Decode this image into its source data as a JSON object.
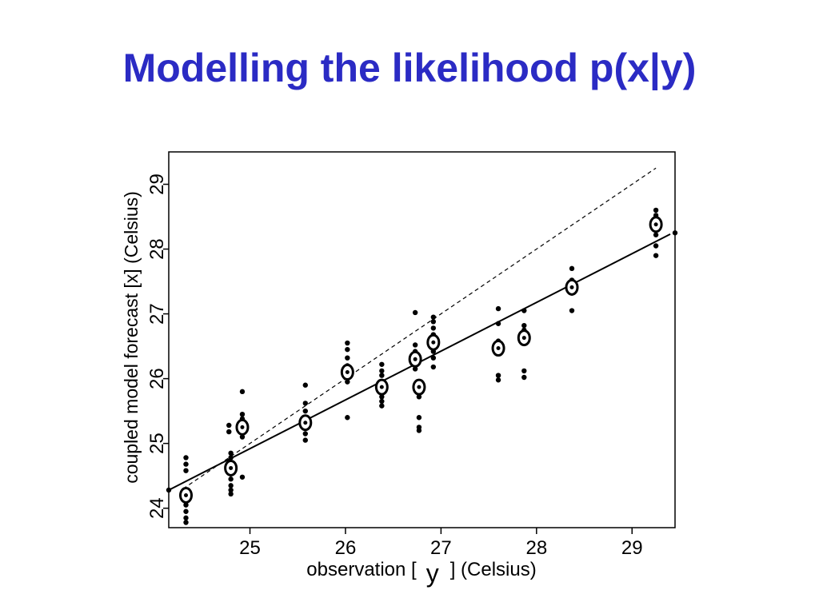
{
  "slide": {
    "title": "Modelling the likelihood p(x|y)",
    "title_color": "#2b2bc4"
  },
  "chart_data": {
    "type": "scatter",
    "xlabel_prefix": "observation [",
    "xlabel_variable": "y",
    "xlabel_suffix": "] (Celsius)",
    "ylabel": "coupled model forecast [x] (Celsius)",
    "xlim": [
      24.15,
      29.45
    ],
    "ylim": [
      23.7,
      29.5
    ],
    "xticks": [
      "25",
      "26",
      "27",
      "28",
      "29"
    ],
    "yticks": [
      "24",
      "25",
      "26",
      "27",
      "28",
      "29"
    ],
    "grid": false,
    "point_color": "#000000",
    "ensemble_points": [
      {
        "x": 24.33,
        "y": [
          24.78,
          24.68,
          24.58,
          24.28,
          24.22,
          24.1,
          24.05,
          23.95,
          23.85,
          23.78
        ]
      },
      {
        "x": 24.8,
        "y": [
          24.85,
          24.78,
          24.7,
          24.55,
          24.45,
          24.35,
          24.28,
          24.22
        ]
      },
      {
        "x": 24.92,
        "y": [
          25.8,
          25.45,
          25.38,
          25.32,
          25.2,
          25.1,
          24.48
        ]
      },
      {
        "x": 24.78,
        "y": [
          25.28,
          25.18
        ]
      },
      {
        "x": 25.58,
        "y": [
          25.9,
          25.62,
          25.5,
          25.35,
          25.25,
          25.15,
          25.05
        ]
      },
      {
        "x": 26.02,
        "y": [
          26.55,
          26.45,
          26.32,
          26.2,
          26.12,
          26.05,
          25.95,
          25.4
        ]
      },
      {
        "x": 26.38,
        "y": [
          26.22,
          26.12,
          26.05,
          25.95,
          25.85,
          25.78,
          25.72,
          25.65,
          25.58
        ]
      },
      {
        "x": 26.73,
        "y": [
          27.02,
          26.52,
          26.42,
          26.35,
          26.28,
          26.2,
          26.15
        ]
      },
      {
        "x": 26.77,
        "y": [
          25.95,
          25.82,
          25.72,
          25.4,
          25.25,
          25.2
        ]
      },
      {
        "x": 26.92,
        "y": [
          26.95,
          26.88,
          26.78,
          26.68,
          26.55,
          26.42,
          26.32,
          26.18
        ]
      },
      {
        "x": 27.6,
        "y": [
          27.08,
          26.85,
          26.58,
          26.52,
          26.45,
          26.05,
          25.98
        ]
      },
      {
        "x": 27.87,
        "y": [
          27.05,
          26.82,
          26.75,
          26.68,
          26.6,
          26.12,
          26.02
        ]
      },
      {
        "x": 28.37,
        "y": [
          27.7,
          27.52,
          27.45,
          27.38,
          27.32,
          27.05
        ]
      },
      {
        "x": 29.25,
        "y": [
          28.6,
          28.52,
          28.45,
          28.38,
          28.3,
          28.22,
          28.05,
          27.9
        ]
      },
      {
        "x": 24.15,
        "y": [
          24.28
        ]
      },
      {
        "x": 29.45,
        "y": [
          28.25
        ]
      }
    ],
    "ensemble_means": [
      {
        "x": 24.33,
        "y": 24.2
      },
      {
        "x": 24.8,
        "y": 24.62
      },
      {
        "x": 24.92,
        "y": 25.25
      },
      {
        "x": 25.58,
        "y": 25.32
      },
      {
        "x": 26.02,
        "y": 26.1
      },
      {
        "x": 26.38,
        "y": 25.87
      },
      {
        "x": 26.73,
        "y": 26.3
      },
      {
        "x": 26.77,
        "y": 25.87
      },
      {
        "x": 26.92,
        "y": 26.56
      },
      {
        "x": 27.6,
        "y": 26.47
      },
      {
        "x": 27.87,
        "y": 26.63
      },
      {
        "x": 28.37,
        "y": 27.41
      },
      {
        "x": 29.25,
        "y": 28.38
      }
    ],
    "regression_line": {
      "x": [
        24.15,
        29.4
      ],
      "y": [
        24.28,
        28.23
      ],
      "style": "solid"
    },
    "identity_line": {
      "x": [
        24.3,
        29.25
      ],
      "y": [
        24.3,
        29.25
      ],
      "style": "dashed"
    }
  }
}
